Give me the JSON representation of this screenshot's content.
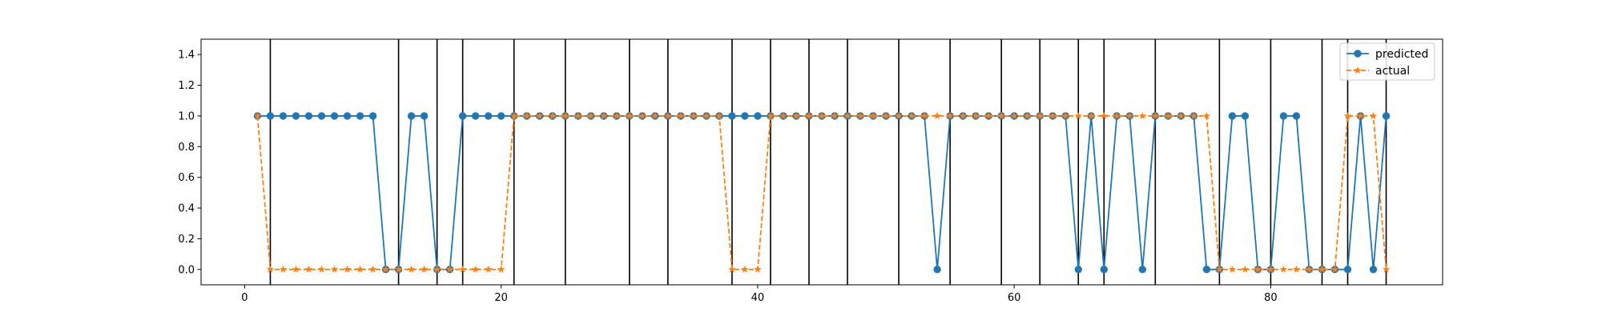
{
  "chart_data": {
    "type": "line",
    "x": [
      1,
      2,
      3,
      4,
      5,
      6,
      7,
      8,
      9,
      10,
      11,
      12,
      13,
      14,
      15,
      16,
      17,
      18,
      19,
      20,
      21,
      22,
      23,
      24,
      25,
      26,
      27,
      28,
      29,
      30,
      31,
      32,
      33,
      34,
      35,
      36,
      37,
      38,
      39,
      40,
      41,
      42,
      43,
      44,
      45,
      46,
      47,
      48,
      49,
      50,
      51,
      52,
      53,
      54,
      55,
      56,
      57,
      58,
      59,
      60,
      61,
      62,
      63,
      64,
      65,
      66,
      67,
      68,
      69,
      70,
      71,
      72,
      73,
      74,
      75,
      76,
      77,
      78,
      79,
      80,
      81,
      82,
      83,
      84,
      85,
      86,
      87,
      88,
      89
    ],
    "series": [
      {
        "name": "predicted",
        "color": "#1f77b4",
        "marker": "circle",
        "line": "solid",
        "values": [
          1,
          1,
          1,
          1,
          1,
          1,
          1,
          1,
          1,
          1,
          0,
          0,
          1,
          1,
          0,
          0,
          1,
          1,
          1,
          1,
          1,
          1,
          1,
          1,
          1,
          1,
          1,
          1,
          1,
          1,
          1,
          1,
          1,
          1,
          1,
          1,
          1,
          1,
          1,
          1,
          1,
          1,
          1,
          1,
          1,
          1,
          1,
          1,
          1,
          1,
          1,
          1,
          1,
          0,
          1,
          1,
          1,
          1,
          1,
          1,
          1,
          1,
          1,
          1,
          0,
          1,
          0,
          1,
          1,
          0,
          1,
          1,
          1,
          1,
          0,
          0,
          1,
          1,
          0,
          0,
          1,
          1,
          0,
          0,
          0,
          0,
          1,
          0,
          1
        ]
      },
      {
        "name": "actual",
        "color": "#ff7f0e",
        "marker": "star",
        "line": "dashed",
        "values": [
          1,
          0,
          0,
          0,
          0,
          0,
          0,
          0,
          0,
          0,
          0,
          0,
          0,
          0,
          0,
          0,
          0,
          0,
          0,
          0,
          1,
          1,
          1,
          1,
          1,
          1,
          1,
          1,
          1,
          1,
          1,
          1,
          1,
          1,
          1,
          1,
          1,
          0,
          0,
          0,
          1,
          1,
          1,
          1,
          1,
          1,
          1,
          1,
          1,
          1,
          1,
          1,
          1,
          1,
          1,
          1,
          1,
          1,
          1,
          1,
          1,
          1,
          1,
          1,
          1,
          1,
          1,
          1,
          1,
          1,
          1,
          1,
          1,
          1,
          1,
          0,
          0,
          0,
          0,
          0,
          0,
          0,
          0,
          0,
          0,
          1,
          1,
          1,
          0
        ]
      }
    ],
    "vlines": [
      2,
      12,
      15,
      17,
      21,
      25,
      30,
      33,
      38,
      41,
      44,
      47,
      51,
      55,
      59,
      62,
      65,
      67,
      71,
      76,
      80,
      84,
      86,
      89
    ],
    "xlim": [
      -3.4,
      93.4
    ],
    "ylim": [
      -0.1,
      1.5
    ],
    "xticks": [
      0,
      20,
      40,
      60,
      80
    ],
    "yticks": [
      0.0,
      0.2,
      0.4,
      0.6,
      0.8,
      1.0,
      1.2,
      1.4
    ],
    "ytick_labels": [
      "0.0",
      "0.2",
      "0.4",
      "0.6",
      "0.8",
      "1.0",
      "1.2",
      "1.4"
    ],
    "title": "",
    "xlabel": "",
    "ylabel": "",
    "grid": false,
    "legend": "top-right"
  }
}
